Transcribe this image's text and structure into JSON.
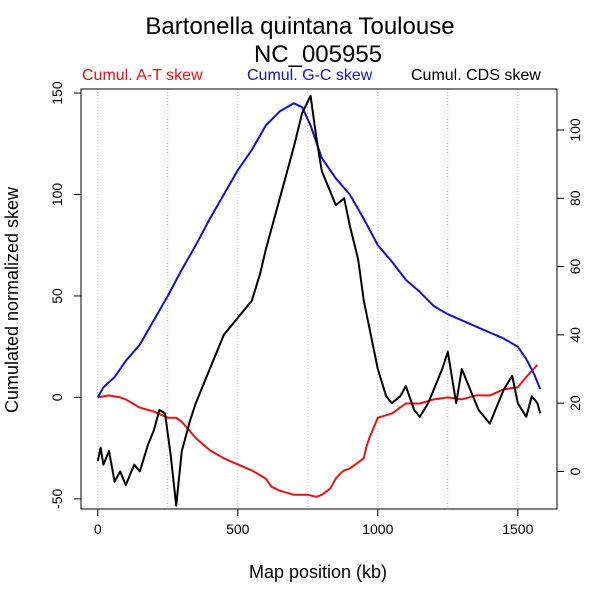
{
  "chart_data": {
    "type": "line",
    "title": "Bartonella quintana Toulouse",
    "subtitle": "NC_005955",
    "xlabel": "Map position (kb)",
    "ylabel": "Cumulated normalized skew",
    "xlim": [
      -60,
      1640
    ],
    "ylim": [
      -55,
      152
    ],
    "ylim_right": [
      -11,
      112
    ],
    "x_ticks": [
      0,
      500,
      1000,
      1500
    ],
    "x_tick_labels": [
      "0",
      "500",
      "1000",
      "1500"
    ],
    "y_ticks": [
      -50,
      0,
      50,
      100,
      150
    ],
    "y_tick_labels": [
      "-50",
      "0",
      "50",
      "100",
      "150"
    ],
    "y2_ticks": [
      0,
      20,
      40,
      60,
      80,
      100
    ],
    "y2_tick_labels": [
      "0",
      "20",
      "40",
      "60",
      "80",
      "100"
    ],
    "vertical_gridlines_x": [
      0,
      250,
      500,
      750,
      1000,
      1250,
      1500
    ],
    "legend_placement": "top",
    "colors": {
      "at_skew": "#ee1111",
      "gc_skew": "#1111cc",
      "cds_skew": "#000000",
      "grid": "#bbbbbb"
    },
    "series": [
      {
        "name": "Cumul. A-T skew",
        "axis": "left",
        "color": "#ee1111",
        "x": [
          0,
          40,
          80,
          100,
          150,
          200,
          250,
          280,
          300,
          350,
          400,
          450,
          500,
          550,
          600,
          620,
          650,
          700,
          750,
          780,
          800,
          830,
          850,
          870,
          880,
          900,
          920,
          950,
          960,
          970,
          1000,
          1050,
          1100,
          1150,
          1200,
          1250,
          1300,
          1350,
          1400,
          1450,
          1500,
          1530,
          1550,
          1570
        ],
        "y": [
          0,
          1,
          0,
          -1,
          -5,
          -7,
          -10,
          -10,
          -12,
          -20,
          -26,
          -30,
          -33,
          -36,
          -40,
          -44,
          -46,
          -48,
          -48,
          -49,
          -48,
          -45,
          -40,
          -37,
          -36,
          -35,
          -33,
          -30,
          -24,
          -20,
          -10,
          -8,
          -3,
          -3,
          -1,
          0,
          -1,
          1,
          1,
          4,
          5,
          10,
          13,
          16
        ]
      },
      {
        "name": "Cumul. G-C skew",
        "axis": "left",
        "color": "#1111cc",
        "x": [
          0,
          20,
          60,
          100,
          150,
          200,
          250,
          300,
          350,
          400,
          450,
          500,
          550,
          600,
          650,
          700,
          730,
          760,
          800,
          850,
          900,
          950,
          1000,
          1050,
          1100,
          1150,
          1200,
          1250,
          1300,
          1350,
          1400,
          1450,
          1500,
          1530,
          1560,
          1580
        ],
        "y": [
          0,
          5,
          10,
          18,
          26,
          38,
          50,
          63,
          75,
          88,
          100,
          112,
          122,
          134,
          141,
          145,
          143,
          134,
          118,
          108,
          100,
          88,
          75,
          67,
          58,
          52,
          45,
          41,
          38,
          35,
          32,
          29,
          25,
          19,
          11,
          4
        ]
      },
      {
        "name": "Cumul. CDS skew",
        "axis": "right",
        "color": "#000000",
        "x": [
          0,
          10,
          20,
          40,
          60,
          80,
          100,
          130,
          150,
          180,
          200,
          220,
          240,
          260,
          280,
          300,
          330,
          350,
          400,
          450,
          500,
          550,
          580,
          600,
          650,
          700,
          730,
          760,
          780,
          800,
          830,
          850,
          880,
          900,
          930,
          950,
          980,
          1000,
          1030,
          1050,
          1080,
          1100,
          1130,
          1150,
          1180,
          1200,
          1230,
          1250,
          1280,
          1300,
          1330,
          1360,
          1400,
          1430,
          1450,
          1480,
          1500,
          1530,
          1550,
          1570,
          1580
        ],
        "y": [
          3,
          7,
          2,
          6,
          -3,
          0,
          -4,
          2,
          0,
          8,
          12,
          18,
          17,
          5,
          -10,
          6,
          15,
          20,
          30,
          40,
          45,
          50,
          58,
          65,
          80,
          95,
          105,
          110,
          98,
          88,
          82,
          78,
          80,
          72,
          62,
          50,
          38,
          30,
          22,
          20,
          22,
          25,
          18,
          16,
          20,
          24,
          30,
          35,
          20,
          30,
          24,
          18,
          14,
          20,
          24,
          28,
          20,
          16,
          22,
          20,
          17
        ]
      }
    ]
  }
}
